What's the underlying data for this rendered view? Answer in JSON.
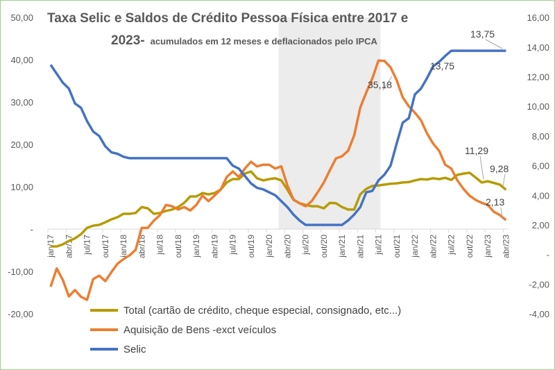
{
  "chart_data": {
    "type": "line",
    "title_line1": "Taxa Selic e Saldos de Crédito Pessoa Física entre 2017 e",
    "title_line2": "2023-",
    "subtitle": "acumulados em 12 meses e deflacionados pelo IPCA",
    "x": [
      "jan/17",
      "fev/17",
      "mar/17",
      "abr/17",
      "mai/17",
      "jun/17",
      "jul/17",
      "ago/17",
      "set/17",
      "out/17",
      "nov/17",
      "dez/17",
      "jan/18",
      "fev/18",
      "mar/18",
      "abr/18",
      "mai/18",
      "jun/18",
      "jul/18",
      "ago/18",
      "set/18",
      "out/18",
      "nov/18",
      "dez/18",
      "jan/19",
      "fev/19",
      "mar/19",
      "abr/19",
      "mai/19",
      "jun/19",
      "jul/19",
      "ago/19",
      "set/19",
      "out/19",
      "nov/19",
      "dez/19",
      "jan/20",
      "fev/20",
      "mar/20",
      "abr/20",
      "mai/20",
      "jun/20",
      "jul/20",
      "ago/20",
      "set/20",
      "out/20",
      "nov/20",
      "dez/20",
      "jan/21",
      "fev/21",
      "mar/21",
      "abr/21",
      "mai/21",
      "jun/21",
      "jul/21",
      "ago/21",
      "set/21",
      "out/21",
      "nov/21",
      "dez/21",
      "jan/22",
      "fev/22",
      "mar/22",
      "abr/22",
      "mai/22",
      "jun/22",
      "jul/22",
      "ago/22",
      "set/22",
      "out/22",
      "nov/22",
      "dez/22",
      "jan/23",
      "fev/23",
      "mar/23",
      "abr/23"
    ],
    "x_tick_labels": [
      "jan/17",
      "abr/17",
      "jul/17",
      "out/17",
      "jan/18",
      "abr/18",
      "jul/18",
      "out/18",
      "jan/19",
      "abr/19",
      "jul/19",
      "out/19",
      "jan/20",
      "abr/20",
      "jul/20",
      "out/20",
      "jan/21",
      "abr/21",
      "jul/21",
      "out/21",
      "jan/22",
      "abr/22",
      "jul/22",
      "out/22",
      "jan/23",
      "abr/23"
    ],
    "y_left": {
      "range": [
        -20,
        50
      ],
      "tick_labels": [
        "50,00",
        "40,00",
        "30,00",
        "20,00",
        "10,00",
        "-",
        "-10,00",
        "-20,00"
      ],
      "ticks": [
        50,
        40,
        30,
        20,
        10,
        0,
        -10,
        -20
      ]
    },
    "y_right": {
      "range": [
        -4,
        16
      ],
      "tick_labels": [
        "16,00",
        "14,00",
        "12,00",
        "10,00",
        "8,00",
        "6,00",
        "4,00",
        "2,00",
        "-",
        "-2,00",
        "-4,00"
      ],
      "ticks": [
        16,
        14,
        12,
        10,
        8,
        6,
        4,
        2,
        0,
        -2,
        -4
      ]
    },
    "shaded_period": [
      "mar/20",
      "jul/21"
    ],
    "series": [
      {
        "name": "Total (cartão de crédito, cheque especial, consignado, etc...)",
        "axis": "left",
        "color": "#b59b00",
        "values": [
          -4.1,
          -4.1,
          -3.6,
          -2.8,
          -2.2,
          -1.2,
          0.3,
          0.8,
          1.0,
          1.6,
          2.3,
          2.8,
          3.6,
          3.6,
          3.8,
          5.2,
          4.9,
          3.6,
          3.8,
          4.3,
          4.6,
          5.2,
          6.2,
          7.7,
          7.7,
          8.5,
          8.2,
          8.5,
          9.3,
          11.0,
          11.8,
          11.8,
          13.1,
          13.6,
          12.0,
          11.5,
          11.8,
          12.0,
          11.5,
          9.3,
          6.9,
          6.1,
          5.7,
          5.4,
          5.4,
          4.9,
          6.2,
          6.1,
          5.2,
          4.6,
          4.6,
          8.2,
          9.5,
          10.2,
          10.3,
          10.5,
          10.7,
          10.8,
          11.0,
          11.1,
          11.5,
          11.8,
          11.7,
          12.0,
          11.8,
          12.1,
          11.6,
          12.8,
          13.1,
          13.3,
          12.2,
          11.0,
          11.29,
          10.9,
          10.5,
          9.28
        ]
      },
      {
        "name": "Aquisição de  Bens -exct veículos",
        "axis": "left",
        "color": "#ed7d31",
        "values": [
          -13.6,
          -9.3,
          -12.0,
          -15.9,
          -14.4,
          -16.0,
          -16.7,
          -11.8,
          -11.0,
          -12.3,
          -10.2,
          -8.2,
          -7.1,
          -6.2,
          -4.9,
          0.3,
          0.3,
          2.0,
          3.3,
          5.7,
          5.4,
          4.6,
          5.2,
          4.4,
          5.7,
          7.9,
          6.6,
          7.9,
          9.3,
          12.3,
          13.6,
          12.3,
          14.3,
          15.9,
          14.8,
          15.2,
          15.2,
          14.3,
          14.8,
          10.3,
          7.0,
          6.1,
          5.4,
          6.6,
          8.7,
          11.0,
          13.9,
          16.7,
          17.2,
          18.5,
          22.1,
          28.7,
          32.3,
          35.6,
          39.8,
          39.7,
          38.2,
          35.18,
          31.1,
          29.0,
          27.5,
          25.7,
          22.6,
          20.2,
          18.5,
          15.2,
          14.3,
          11.5,
          9.5,
          7.9,
          6.9,
          6.2,
          5.7,
          4.1,
          3.3,
          2.13
        ]
      },
      {
        "name": "Selic",
        "axis": "right",
        "color": "#4472c4",
        "values": [
          12.8,
          12.2,
          11.6,
          11.2,
          10.2,
          9.9,
          9.0,
          8.3,
          8.0,
          7.3,
          6.9,
          6.8,
          6.6,
          6.5,
          6.5,
          6.5,
          6.5,
          6.5,
          6.5,
          6.5,
          6.5,
          6.5,
          6.5,
          6.5,
          6.5,
          6.5,
          6.5,
          6.5,
          6.5,
          6.5,
          6.0,
          5.8,
          5.3,
          4.8,
          4.5,
          4.4,
          4.2,
          4.0,
          3.6,
          3.2,
          2.7,
          2.3,
          2.0,
          2.0,
          2.0,
          2.0,
          2.0,
          2.0,
          2.0,
          2.3,
          2.7,
          3.2,
          4.2,
          4.3,
          5.0,
          5.4,
          6.0,
          7.5,
          8.9,
          9.2,
          10.8,
          11.2,
          11.9,
          12.7,
          13.0,
          13.4,
          13.75,
          13.75,
          13.75,
          13.75,
          13.75,
          13.75,
          13.75,
          13.75,
          13.75,
          13.75
        ]
      }
    ],
    "data_labels": [
      {
        "text": "13,75",
        "series": "Selic",
        "x": "abr/23"
      },
      {
        "text": "13,75",
        "series": "Selic",
        "x": "jul/22"
      },
      {
        "text": "35,18",
        "series": "Aquisição de  Bens -exct veículos",
        "x": "out/21"
      },
      {
        "text": "11,29",
        "series": "Total (cartão de crédito, cheque especial, consignado, etc...)",
        "x": "jan/23"
      },
      {
        "text": "9,28",
        "series": "Total (cartão de crédito, cheque especial, consignado, etc...)",
        "x": "abr/23"
      },
      {
        "text": "2,13",
        "series": "Aquisição de  Bens -exct veículos",
        "x": "abr/23"
      }
    ],
    "legend_position": "bottom-left",
    "grid": false
  }
}
